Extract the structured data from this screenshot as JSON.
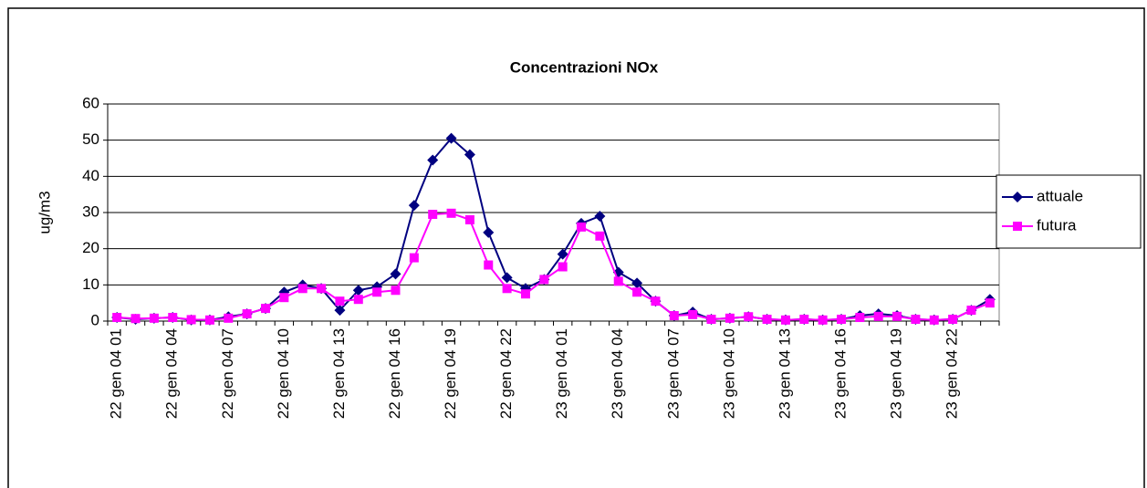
{
  "chart_data": {
    "type": "line",
    "title": "Concentrazioni NOx",
    "y_label": "ug/m3",
    "categories": [
      "22 gen 04 01",
      null,
      null,
      "22 gen 04 04",
      null,
      null,
      "22 gen 04 07",
      null,
      null,
      "22 gen 04 10",
      null,
      null,
      "22 gen 04 13",
      null,
      null,
      "22 gen 04 16",
      null,
      null,
      "22 gen 04 19",
      null,
      null,
      "22 gen 04 22",
      null,
      null,
      "23 gen 04 01",
      null,
      null,
      "23 gen 04 04",
      null,
      null,
      "23 gen 04 07",
      null,
      null,
      "23 gen 04 10",
      null,
      null,
      "23 gen 04 13",
      null,
      null,
      "23 gen 04 16",
      null,
      null,
      "23 gen 04 19",
      null,
      null,
      "23 gen 04 22",
      null,
      null
    ],
    "series": [
      {
        "name": "attuale",
        "color": "#000080",
        "marker": "diamond",
        "values": [
          1,
          0.5,
          0.8,
          1,
          0.3,
          0.3,
          1.2,
          2,
          3.5,
          8,
          10,
          9,
          3,
          8.5,
          9.5,
          13,
          32,
          44.5,
          50.5,
          46,
          24.5,
          12,
          9,
          11.5,
          18.5,
          27,
          29,
          13.5,
          10.5,
          5.5,
          1.5,
          2.5,
          0.5,
          0.8,
          1.2,
          0.5,
          0.3,
          0.5,
          0.3,
          0.5,
          1.5,
          2,
          1.5,
          0.5,
          0.3,
          0.5,
          3,
          6
        ]
      },
      {
        "name": "futura",
        "color": "#ff00ff",
        "marker": "square",
        "values": [
          1,
          0.7,
          0.8,
          1,
          0.4,
          0.3,
          0.8,
          2,
          3.5,
          6.5,
          9,
          9,
          5.5,
          6,
          8,
          8.5,
          17.5,
          29.5,
          29.8,
          28,
          15.5,
          9,
          7.5,
          11.5,
          15,
          26,
          23.5,
          11,
          8,
          5.5,
          1.5,
          1.8,
          0.5,
          0.8,
          1.2,
          0.5,
          0.3,
          0.5,
          0.3,
          0.5,
          1,
          1.3,
          1.3,
          0.5,
          0.3,
          0.5,
          3,
          5
        ]
      }
    ],
    "ylim": [
      0,
      60
    ],
    "yticks": [
      0,
      10,
      20,
      30,
      40,
      50,
      60
    ],
    "grid": true,
    "legend": "right"
  }
}
